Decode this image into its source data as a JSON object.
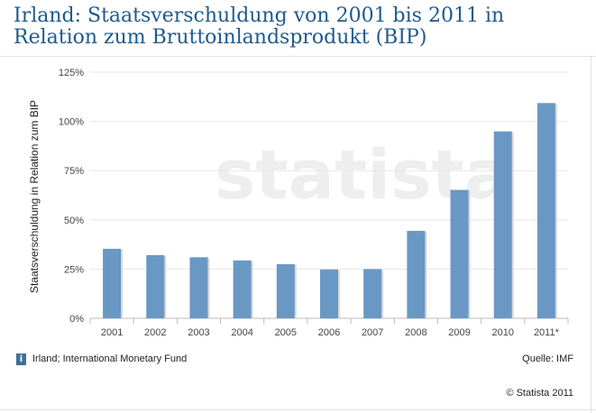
{
  "title": "Irland: Staatsverschuldung von 2001 bis 2011 in Relation zum Bruttoinlandsprodukt (BIP)",
  "watermark": "statista",
  "footer": {
    "info_icon": "i",
    "info": "Irland; International Monetary Fund",
    "source": "Quelle: IMF",
    "copyright": "© Statista 2011"
  },
  "colors": {
    "bar": "#6a98c4",
    "title": "#1f5a8c"
  },
  "chart_data": {
    "type": "bar",
    "categories": [
      "2001",
      "2002",
      "2003",
      "2004",
      "2005",
      "2006",
      "2007",
      "2008",
      "2009",
      "2010",
      "2011*"
    ],
    "values": [
      35.3,
      32.1,
      31.0,
      29.4,
      27.5,
      24.8,
      25.0,
      44.4,
      65.2,
      94.9,
      109.3
    ],
    "xlabel": "",
    "ylabel": "Staatsverschuldung in Relation zum BIP",
    "ylim": [
      0,
      125
    ],
    "yticks": [
      "0%",
      "25%",
      "50%",
      "75%",
      "100%",
      "125%"
    ],
    "grid": true
  }
}
